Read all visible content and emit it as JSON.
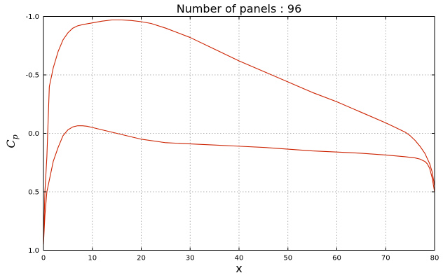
{
  "chart_data": {
    "type": "line",
    "title": "Number of panels : 96",
    "xlabel": "x",
    "ylabel": "C",
    "ylabel_subscript": "p",
    "xlim": [
      0,
      80
    ],
    "ylim": [
      1.0,
      -1.0
    ],
    "y_inverted": true,
    "grid": true,
    "legend": "none",
    "line_color": "#cc2200",
    "xticks": [
      "0",
      "10",
      "20",
      "30",
      "40",
      "50",
      "60",
      "70",
      "80"
    ],
    "yticks": [
      "-1.0",
      "-0.5",
      "0.0",
      "0.5",
      "1.0"
    ],
    "series": [
      {
        "x": [
          0,
          0.3,
          0.7,
          1.2,
          2,
          3,
          4,
          5,
          6,
          7,
          8,
          10,
          12,
          14,
          16,
          18,
          20,
          22,
          25,
          30,
          35,
          40,
          45,
          50,
          55,
          60,
          65,
          70,
          72,
          74,
          75,
          76,
          77,
          78,
          79,
          79.5,
          80
        ],
        "y": [
          0.95,
          0.5,
          0.2,
          -0.4,
          -0.56,
          -0.7,
          -0.8,
          -0.86,
          -0.9,
          -0.92,
          -0.93,
          -0.945,
          -0.96,
          -0.97,
          -0.97,
          -0.965,
          -0.955,
          -0.94,
          -0.9,
          -0.82,
          -0.72,
          -0.62,
          -0.53,
          -0.44,
          -0.35,
          -0.27,
          -0.18,
          -0.09,
          -0.05,
          -0.01,
          0.02,
          0.06,
          0.11,
          0.17,
          0.26,
          0.33,
          0.45
        ]
      },
      {
        "x": [
          0,
          0.3,
          0.7,
          1.2,
          2,
          3,
          4,
          5,
          6,
          7,
          8,
          9,
          10,
          12,
          15,
          20,
          25,
          30,
          35,
          40,
          45,
          50,
          55,
          60,
          65,
          70,
          74,
          76,
          77,
          78,
          78.5,
          79,
          79.5,
          80
        ],
        "y": [
          0.95,
          0.7,
          0.5,
          0.4,
          0.24,
          0.12,
          0.02,
          -0.03,
          -0.055,
          -0.065,
          -0.065,
          -0.06,
          -0.05,
          -0.03,
          0.0,
          0.05,
          0.08,
          0.09,
          0.1,
          0.11,
          0.12,
          0.135,
          0.15,
          0.16,
          0.17,
          0.185,
          0.2,
          0.21,
          0.22,
          0.24,
          0.26,
          0.3,
          0.38,
          0.5
        ]
      }
    ]
  }
}
